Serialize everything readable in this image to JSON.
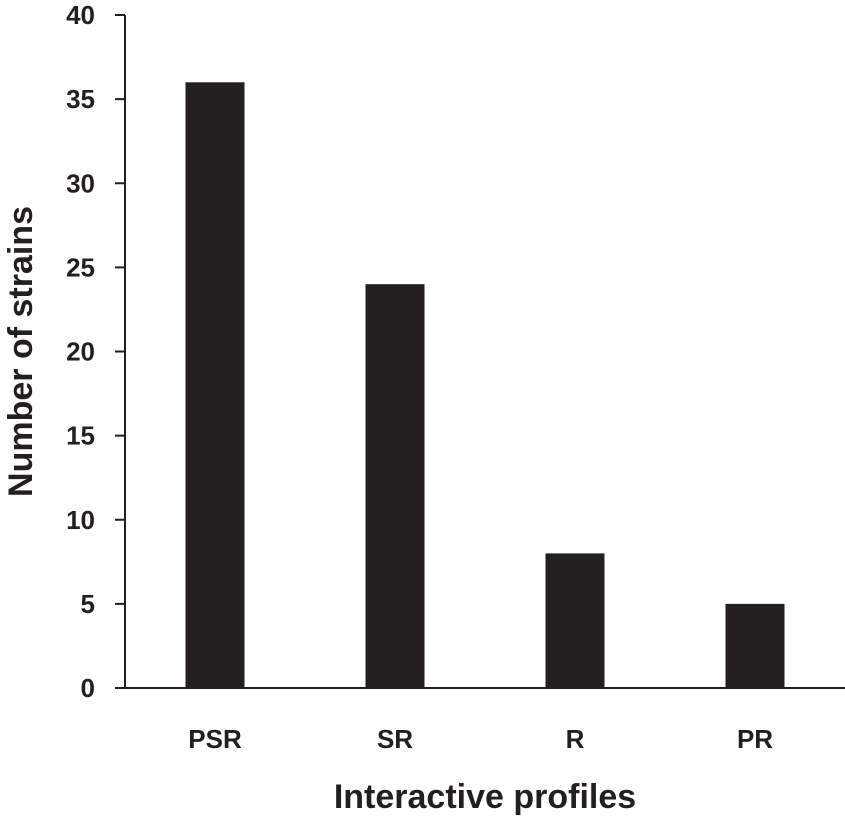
{
  "chart_data": {
    "type": "bar",
    "categories": [
      "PSR",
      "SR",
      "R",
      "PR"
    ],
    "values": [
      36,
      24,
      8,
      5
    ],
    "xlabel": "Interactive profiles",
    "ylabel": "Number of strains",
    "ylim": [
      0,
      40
    ],
    "yticks": [
      "0",
      "5",
      "10",
      "15",
      "20",
      "25",
      "30",
      "35",
      "40"
    ],
    "grid": false,
    "legend": "none",
    "bar_color": "#231f20",
    "axis_color": "#231f20"
  }
}
